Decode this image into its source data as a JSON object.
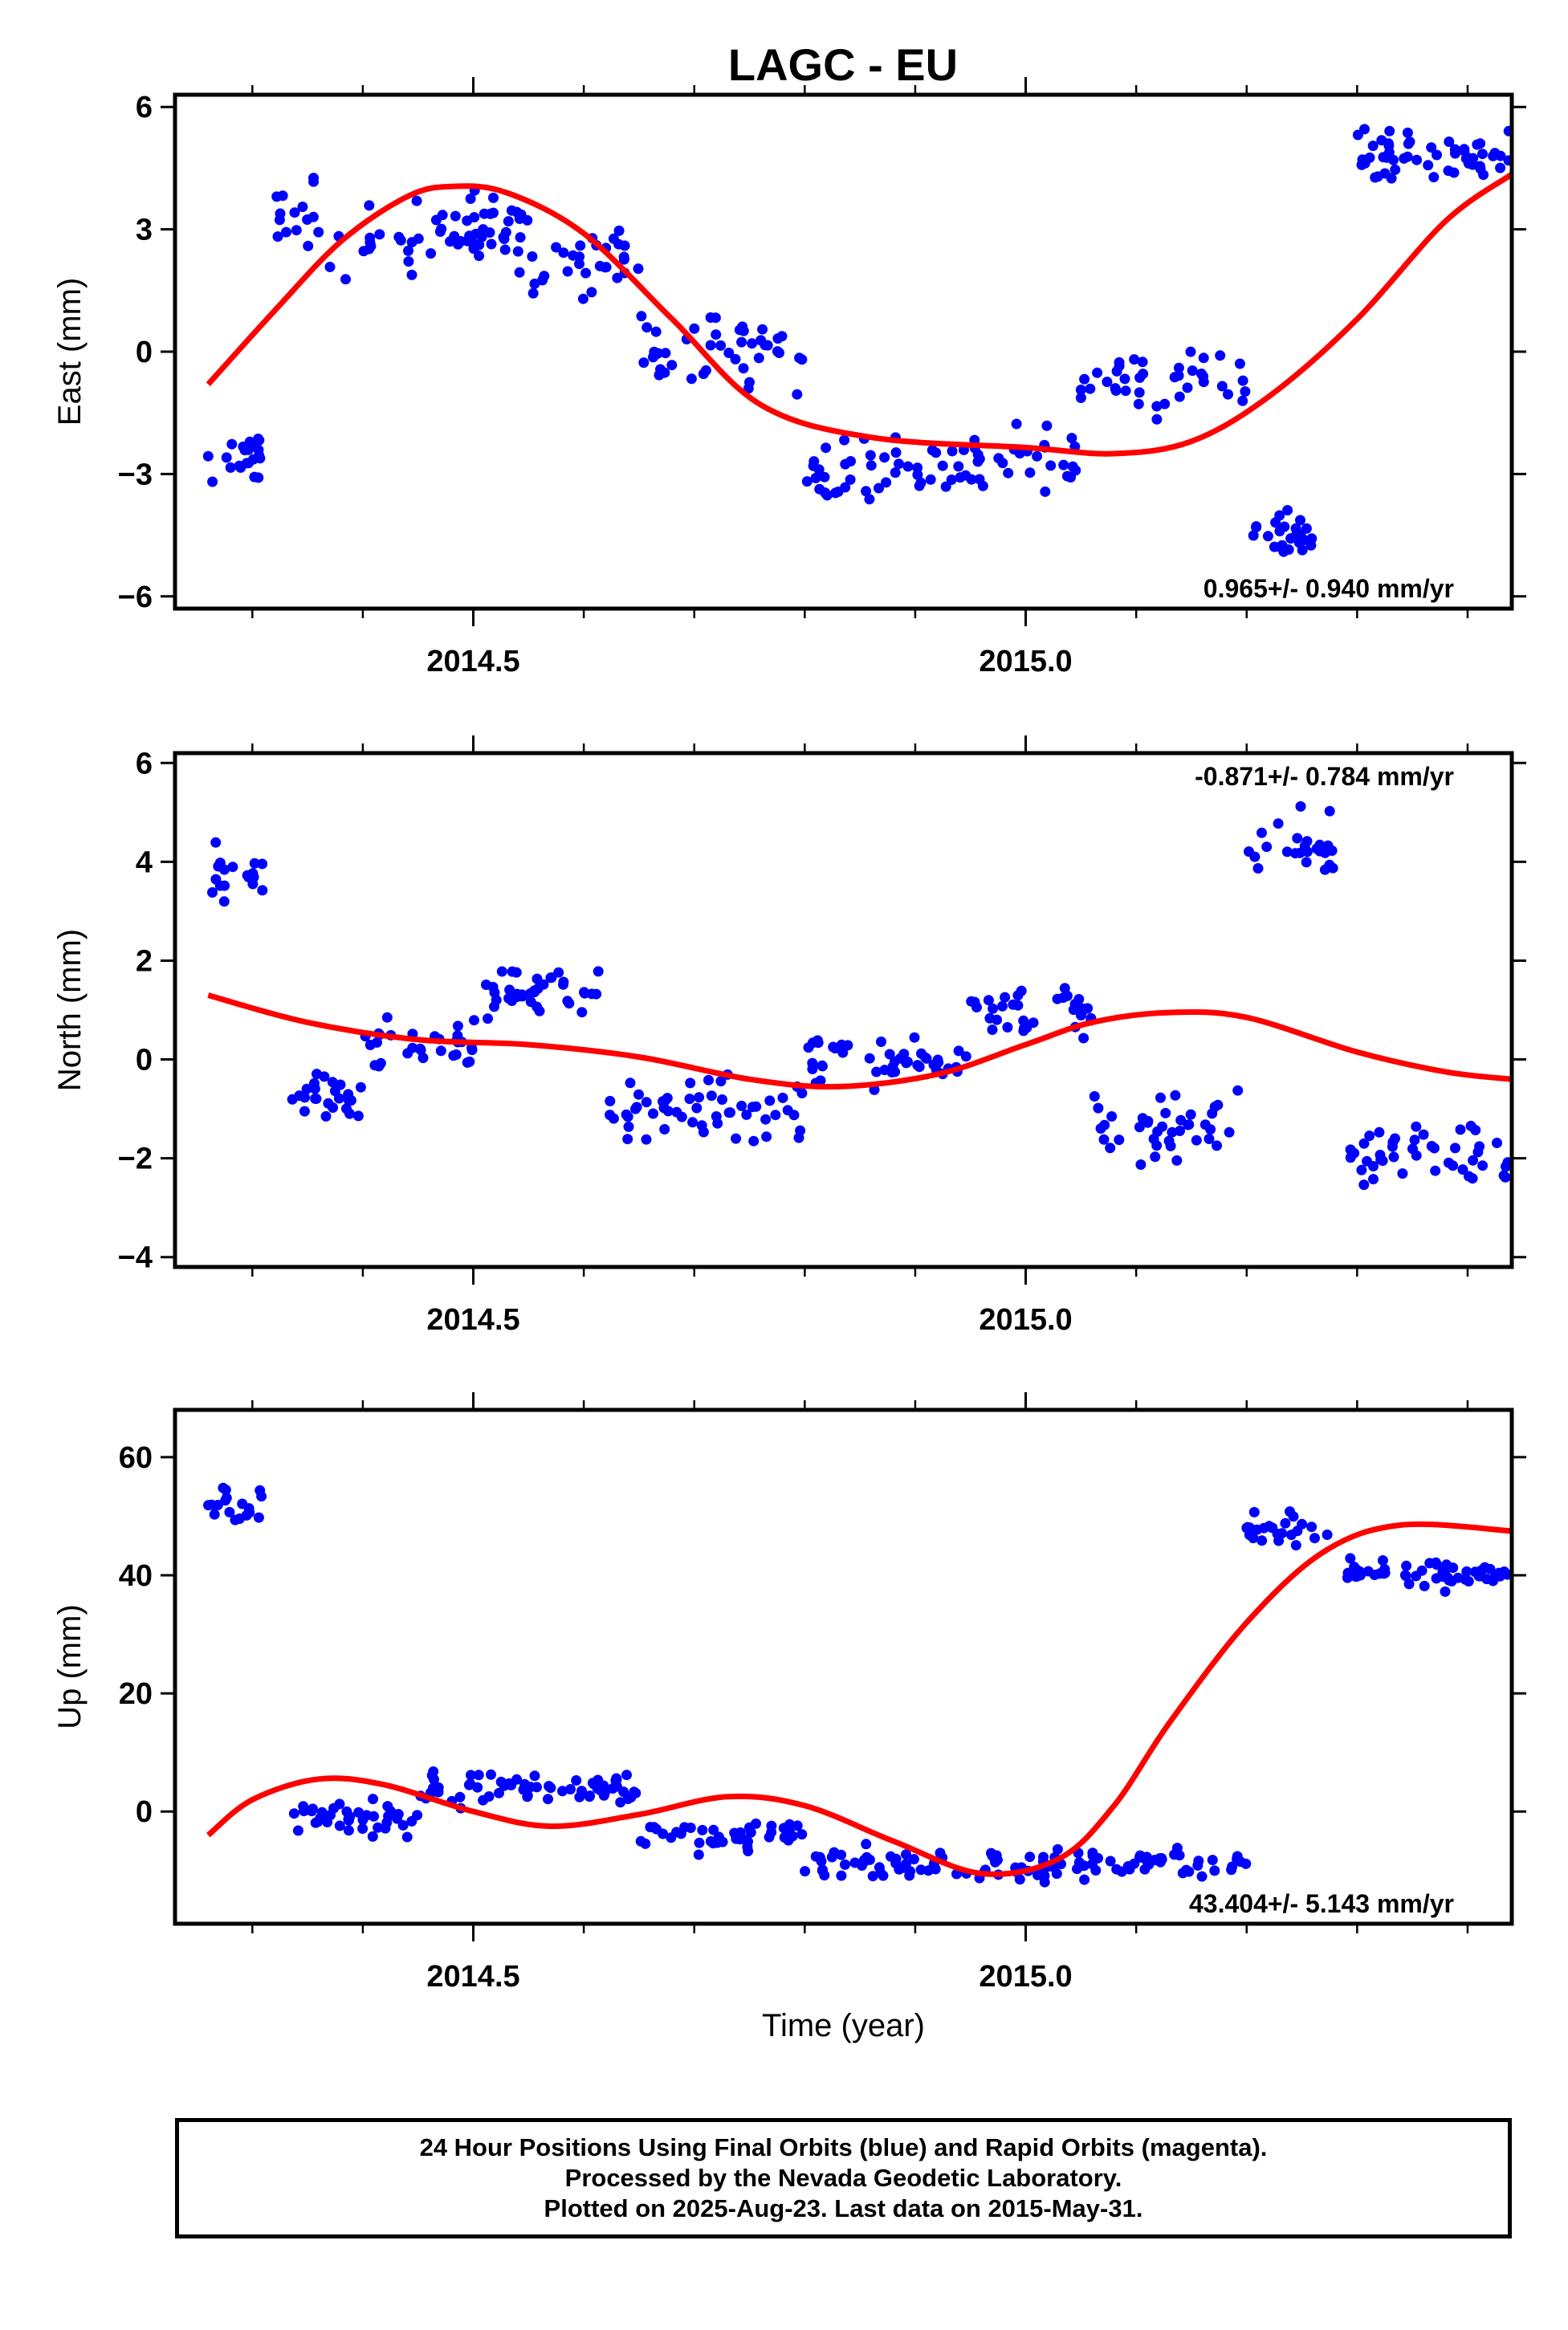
{
  "title": "LAGC - EU",
  "caption": {
    "line1": "24 Hour Positions Using Final Orbits (blue) and Rapid Orbits (magenta).",
    "line2": "Processed by the Nevada Geodetic Laboratory.",
    "line3": "Plotted on 2025-Aug-23. Last data on 2015-May-31."
  },
  "colors": {
    "data": "#0000ff",
    "fit": "#ff0000",
    "frame": "#000000"
  },
  "chart_data": [
    {
      "type": "scatter",
      "ylabel": "East (mm)",
      "xlabel": "",
      "xlim": [
        2014.23,
        2015.44
      ],
      "ylim": [
        -6.3,
        6.3
      ],
      "xticks": [
        "2014.5",
        "2015.0"
      ],
      "yticks": [
        "6",
        "3",
        "0",
        "−3",
        "−6"
      ],
      "rate": "0.965+/- 0.940 mm/yr",
      "rate_position": "bottom-right",
      "fit_knots": [
        [
          2014.26,
          -0.8
        ],
        [
          2014.32,
          1.0
        ],
        [
          2014.38,
          2.7
        ],
        [
          2014.44,
          3.8
        ],
        [
          2014.48,
          4.05
        ],
        [
          2014.53,
          3.9
        ],
        [
          2014.6,
          2.9
        ],
        [
          2014.68,
          0.8
        ],
        [
          2014.76,
          -1.3
        ],
        [
          2014.86,
          -2.1
        ],
        [
          2015.0,
          -2.35
        ],
        [
          2015.08,
          -2.5
        ],
        [
          2015.15,
          -2.2
        ],
        [
          2015.22,
          -1.1
        ],
        [
          2015.3,
          0.8
        ],
        [
          2015.38,
          3.2
        ],
        [
          2015.44,
          4.35
        ]
      ],
      "clusters": [
        {
          "x": [
            2014.26,
            2014.31
          ],
          "y": [
            -2.5
          ],
          "spread": 1.2,
          "n": 22
        },
        {
          "x": [
            2014.32,
            2014.36
          ],
          "y": [
            3.3
          ],
          "spread": 1.1,
          "n": 15
        },
        {
          "x": [
            2014.37,
            2014.55
          ],
          "y": [
            2.9
          ],
          "spread": 1.3,
          "n": 60
        },
        {
          "x": [
            2014.55,
            2014.65
          ],
          "y": [
            2.2
          ],
          "spread": 1.1,
          "n": 30
        },
        {
          "x": [
            2014.65,
            2014.8
          ],
          "y": [
            0.0
          ],
          "spread": 1.3,
          "n": 45
        },
        {
          "x": [
            2014.8,
            2014.95
          ],
          "y": [
            -2.9
          ],
          "spread": 1.0,
          "n": 45
        },
        {
          "x": [
            2014.95,
            2015.05
          ],
          "y": [
            -2.6
          ],
          "spread": 1.0,
          "n": 30
        },
        {
          "x": [
            2015.05,
            2015.2
          ],
          "y": [
            -0.8
          ],
          "spread": 1.1,
          "n": 40
        },
        {
          "x": [
            2015.2,
            2015.26
          ],
          "y": [
            -4.5
          ],
          "spread": 0.8,
          "n": 25
        },
        {
          "x": [
            2015.3,
            2015.44
          ],
          "y": [
            4.8
          ],
          "spread": 0.8,
          "n": 55
        }
      ]
    },
    {
      "type": "scatter",
      "ylabel": "North (mm)",
      "xlabel": "",
      "xlim": [
        2014.23,
        2015.44
      ],
      "ylim": [
        -4.2,
        6.2
      ],
      "xticks": [
        "2014.5",
        "2015.0"
      ],
      "yticks": [
        "6",
        "4",
        "2",
        "0",
        "−2",
        "−4"
      ],
      "rate": "-0.871+/- 0.784 mm/yr",
      "rate_position": "top-right",
      "fit_knots": [
        [
          2014.26,
          1.3
        ],
        [
          2014.35,
          0.75
        ],
        [
          2014.45,
          0.4
        ],
        [
          2014.55,
          0.3
        ],
        [
          2014.65,
          0.05
        ],
        [
          2014.75,
          -0.4
        ],
        [
          2014.83,
          -0.55
        ],
        [
          2014.92,
          -0.3
        ],
        [
          2015.0,
          0.3
        ],
        [
          2015.06,
          0.75
        ],
        [
          2015.13,
          0.95
        ],
        [
          2015.2,
          0.85
        ],
        [
          2015.3,
          0.15
        ],
        [
          2015.38,
          -0.25
        ],
        [
          2015.44,
          -0.4
        ]
      ],
      "clusters": [
        {
          "x": [
            2014.26,
            2014.31
          ],
          "y": [
            3.7
          ],
          "spread": 0.8,
          "n": 18
        },
        {
          "x": [
            2014.33,
            2014.4
          ],
          "y": [
            -0.8
          ],
          "spread": 0.8,
          "n": 25
        },
        {
          "x": [
            2014.4,
            2014.5
          ],
          "y": [
            0.2
          ],
          "spread": 0.8,
          "n": 30
        },
        {
          "x": [
            2014.5,
            2014.62
          ],
          "y": [
            1.3
          ],
          "spread": 0.8,
          "n": 40
        },
        {
          "x": [
            2014.62,
            2014.8
          ],
          "y": [
            -1.0
          ],
          "spread": 0.9,
          "n": 55
        },
        {
          "x": [
            2014.8,
            2014.95
          ],
          "y": [
            0.0
          ],
          "spread": 0.9,
          "n": 45
        },
        {
          "x": [
            2014.95,
            2015.06
          ],
          "y": [
            0.9
          ],
          "spread": 0.8,
          "n": 35
        },
        {
          "x": [
            2015.06,
            2015.2
          ],
          "y": [
            -1.3
          ],
          "spread": 1.1,
          "n": 40
        },
        {
          "x": [
            2015.2,
            2015.28
          ],
          "y": [
            4.3
          ],
          "spread": 0.9,
          "n": 25
        },
        {
          "x": [
            2015.29,
            2015.44
          ],
          "y": [
            -1.9
          ],
          "spread": 1.0,
          "n": 45
        }
      ]
    },
    {
      "type": "scatter",
      "ylabel": "Up (mm)",
      "xlabel": "Time (year)",
      "xlim": [
        2014.23,
        2015.44
      ],
      "ylim": [
        -19,
        68
      ],
      "xticks": [
        "2014.5",
        "2015.0"
      ],
      "yticks": [
        "60",
        "40",
        "20",
        "0"
      ],
      "rate": "43.404+/- 5.143 mm/yr",
      "rate_position": "bottom-right",
      "fit_knots": [
        [
          2014.26,
          -4
        ],
        [
          2014.3,
          2
        ],
        [
          2014.36,
          5.5
        ],
        [
          2014.42,
          4.5
        ],
        [
          2014.5,
          0
        ],
        [
          2014.57,
          -2.5
        ],
        [
          2014.65,
          -0.5
        ],
        [
          2014.73,
          2.5
        ],
        [
          2014.8,
          1
        ],
        [
          2014.88,
          -5
        ],
        [
          2014.96,
          -10.5
        ],
        [
          2015.03,
          -8
        ],
        [
          2015.08,
          1
        ],
        [
          2015.13,
          15
        ],
        [
          2015.2,
          32
        ],
        [
          2015.27,
          44
        ],
        [
          2015.34,
          48.5
        ],
        [
          2015.44,
          47.5
        ]
      ],
      "clusters": [
        {
          "x": [
            2014.26,
            2014.31
          ],
          "y": [
            52
          ],
          "spread": 4,
          "n": 18
        },
        {
          "x": [
            2014.33,
            2014.45
          ],
          "y": [
            -1
          ],
          "spread": 4,
          "n": 40
        },
        {
          "x": [
            2014.45,
            2014.65
          ],
          "y": [
            4
          ],
          "spread": 4,
          "n": 65
        },
        {
          "x": [
            2014.65,
            2014.8
          ],
          "y": [
            -4
          ],
          "spread": 4,
          "n": 45
        },
        {
          "x": [
            2014.8,
            2014.95
          ],
          "y": [
            -9
          ],
          "spread": 4,
          "n": 45
        },
        {
          "x": [
            2014.95,
            2015.06
          ],
          "y": [
            -9
          ],
          "spread": 4,
          "n": 35
        },
        {
          "x": [
            2015.06,
            2015.2
          ],
          "y": [
            -9
          ],
          "spread": 3.5,
          "n": 40
        },
        {
          "x": [
            2015.2,
            2015.28
          ],
          "y": [
            48
          ],
          "spread": 4,
          "n": 25
        },
        {
          "x": [
            2015.29,
            2015.44
          ],
          "y": [
            40
          ],
          "spread": 4,
          "n": 55
        }
      ]
    }
  ]
}
